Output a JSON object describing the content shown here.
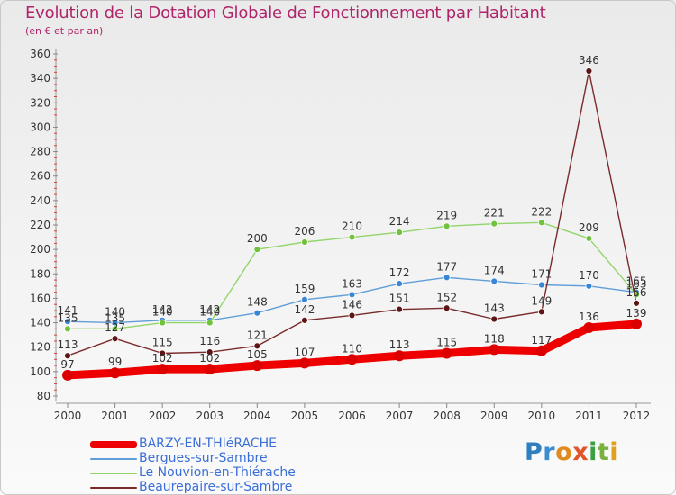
{
  "title": "Evolution de la Dotation Globale de Fonctionnement par Habitant",
  "subtitle": "(en € et par an)",
  "logo_text": "Proxiti",
  "chart_data": {
    "type": "line",
    "title": "Evolution de la Dotation Globale de Fonctionnement par Habitant",
    "subtitle": "(en € et par an)",
    "xlabel": "",
    "ylabel": "",
    "ylim": [
      80,
      360
    ],
    "yticks": [
      80,
      100,
      120,
      140,
      160,
      180,
      200,
      220,
      240,
      260,
      280,
      300,
      320,
      340,
      360
    ],
    "x": [
      "2000",
      "2001",
      "2002",
      "2003",
      "2004",
      "2005",
      "2006",
      "2007",
      "2008",
      "2009",
      "2010",
      "2011",
      "2012"
    ],
    "grid": false,
    "legend_position": "bottom-left",
    "series": [
      {
        "name": "BARZY-EN-THIéRACHE",
        "color": "#ee0000",
        "marker": "#dd0000",
        "values": [
          97,
          99,
          102,
          102,
          105,
          107,
          110,
          113,
          115,
          118,
          117,
          136,
          139
        ]
      },
      {
        "name": "Bergues-sur-Sambre",
        "color": "#5f9ed8",
        "marker": "#3a86d6",
        "values": [
          141,
          140,
          142,
          142,
          148,
          159,
          163,
          172,
          177,
          174,
          171,
          170,
          165
        ]
      },
      {
        "name": "Le Nouvion-en-Thiérache",
        "color": "#92d56a",
        "marker": "#70c23c",
        "values": [
          135,
          135,
          140,
          140,
          200,
          206,
          210,
          214,
          219,
          221,
          222,
          209,
          163
        ]
      },
      {
        "name": "Beaurepaire-sur-Sambre",
        "color": "#7a2a2a",
        "marker": "#5e1515",
        "values": [
          113,
          127,
          115,
          116,
          121,
          142,
          146,
          151,
          152,
          143,
          149,
          346,
          156
        ]
      }
    ]
  }
}
